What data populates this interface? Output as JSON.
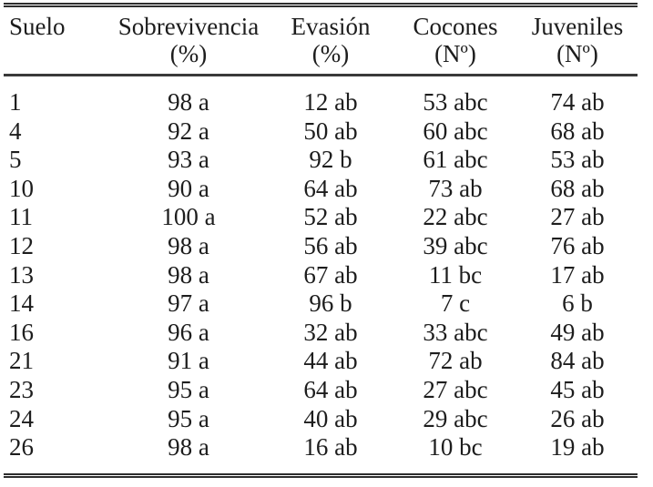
{
  "table": {
    "colors": {
      "text": "#1d1d1d",
      "rule": "#2e2e2e",
      "background": "#ffffff"
    },
    "columns": [
      {
        "label": "Suelo",
        "unit": ""
      },
      {
        "label": "Sobrevivencia",
        "unit": "(%)"
      },
      {
        "label": "Evasión",
        "unit": "(%)"
      },
      {
        "label": "Cocones",
        "unit": "(Nº)"
      },
      {
        "label": "Juveniles",
        "unit": "(Nº)"
      }
    ],
    "rows": [
      [
        "1",
        "98 a",
        "12 ab",
        "53 abc",
        "74 ab"
      ],
      [
        "4",
        "92 a",
        "50 ab",
        "60 abc",
        "68 ab"
      ],
      [
        "5",
        "93 a",
        "92 b",
        "61 abc",
        "53 ab"
      ],
      [
        "10",
        "90 a",
        "64 ab",
        "73 ab",
        "68 ab"
      ],
      [
        "11",
        "100 a",
        "52 ab",
        "22 abc",
        "27 ab"
      ],
      [
        "12",
        "98 a",
        "56 ab",
        "39 abc",
        "76 ab"
      ],
      [
        "13",
        "98 a",
        "67 ab",
        "11 bc",
        "17 ab"
      ],
      [
        "14",
        "97 a",
        "96 b",
        "7 c",
        "6 b"
      ],
      [
        "16",
        "96 a",
        "32 ab",
        "33 abc",
        "49 ab"
      ],
      [
        "21",
        "91 a",
        "44 ab",
        "72 ab",
        "84 ab"
      ],
      [
        "23",
        "95 a",
        "64 ab",
        "27 abc",
        "45 ab"
      ],
      [
        "24",
        "95 a",
        "40 ab",
        "29 abc",
        "26 ab"
      ],
      [
        "26",
        "98 a",
        "16 ab",
        "10 bc",
        "19 ab"
      ]
    ]
  }
}
